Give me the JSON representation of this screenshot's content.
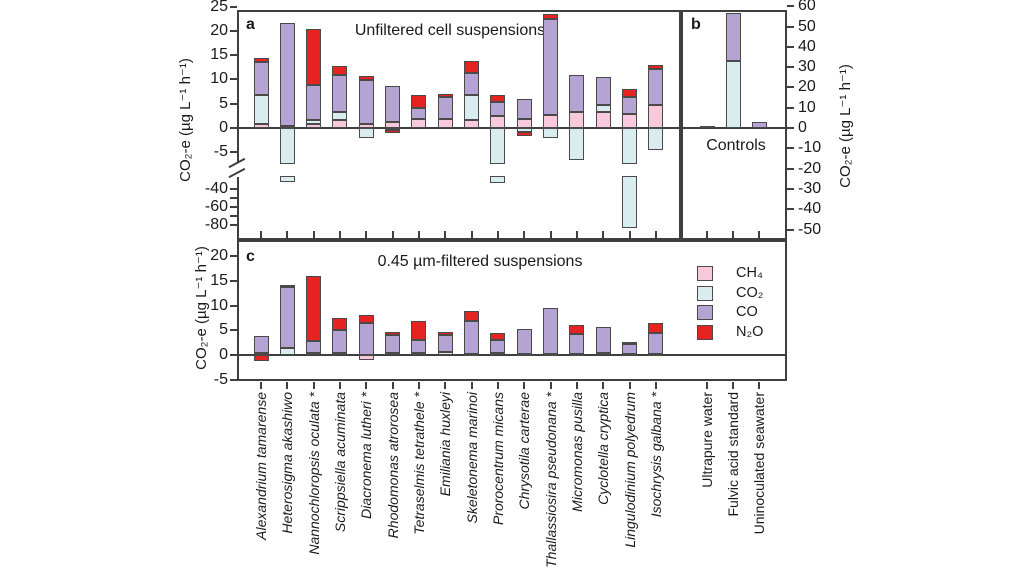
{
  "legend": {
    "items": [
      {
        "key": "ch4",
        "label": "CH₄",
        "color": "#f8c8dc"
      },
      {
        "key": "co2",
        "label": "CO₂",
        "color": "#d9edf1"
      },
      {
        "key": "co",
        "label": "CO",
        "color": "#b4a3d3"
      },
      {
        "key": "n2o",
        "label": "N₂O",
        "color": "#e52421"
      }
    ],
    "position": "right-middle"
  },
  "chart_data": [
    {
      "panel": "a",
      "panel_label": "a",
      "type": "bar",
      "stacked": true,
      "title": "Unfiltered cell suspensions",
      "ylabel": "CO₂-e (µg L⁻¹ h⁻¹)",
      "y_axis": {
        "upper_ticks": [
          25,
          20,
          15,
          10,
          5,
          0,
          -5
        ],
        "lower_ticks": [
          -40,
          -60,
          -80
        ],
        "lower_minor_ticks": [
          -50,
          -70
        ],
        "axis_break": true
      },
      "categories": [
        "Alexandrium tamarense",
        "Heterosigma akashiwo",
        "Nannochloropsis oculata *",
        "Scrippsiella acuminata",
        "Diacronema lutheri *",
        "Rhodomonas atrorosea",
        "Tetraselmis tetrathele *",
        "Emiliania huxleyi",
        "Skeletonema marinoi",
        "Prorocentrum micans",
        "Chrysotila carterae",
        "Thallassiosira pseudonana *",
        "Micromonas pusilla",
        "Cyclotella cryptica",
        "Lingulodinium polyedrum",
        "Isochrysis galbana *"
      ],
      "bars": [
        {
          "pos": {
            "ch4": 0.8,
            "co2": 6.0,
            "co": 6.8,
            "n2o": 0.9
          }
        },
        {
          "pos": {
            "ch4": 0.5,
            "co": 21.2
          },
          "neg": {
            "co2": -32
          }
        },
        {
          "pos": {
            "ch4": 0.8,
            "co2": 0.8,
            "co": 7.3,
            "n2o": 11.4
          }
        },
        {
          "pos": {
            "ch4": 1.6,
            "co2": 1.7,
            "co": 7.7,
            "n2o": 1.7
          }
        },
        {
          "pos": {
            "ch4": 0.8,
            "co": 9.0,
            "n2o": 1.0
          },
          "neg": {
            "co2": -2.1
          }
        },
        {
          "pos": {
            "ch4": 1.2,
            "co": 7.4
          },
          "neg": {
            "ch4": -0.5,
            "n2o": -0.5
          }
        },
        {
          "pos": {
            "ch4": 1.8,
            "co": 2.4,
            "n2o": 2.6
          }
        },
        {
          "pos": {
            "ch4": 1.8,
            "co": 4.6,
            "n2o": 0.6
          }
        },
        {
          "pos": {
            "ch4": 1.7,
            "co2": 5.1,
            "co": 4.5,
            "n2o": 2.4
          }
        },
        {
          "pos": {
            "ch4": 2.4,
            "co": 2.9,
            "n2o": 1.5
          },
          "neg": {
            "co2": -33
          }
        },
        {
          "pos": {
            "ch4": 1.8,
            "co": 4.2
          },
          "neg": {
            "co2": -0.9,
            "n2o": -0.8
          }
        },
        {
          "pos": {
            "ch4": 2.7,
            "co": 19.8,
            "n2o": 0.9
          },
          "neg": {
            "co2": -2.1
          }
        },
        {
          "pos": {
            "ch4": 3.2,
            "co": 7.7
          },
          "neg": {
            "co2": -6.5
          }
        },
        {
          "pos": {
            "ch4": 3.2,
            "co2": 1.5,
            "co": 5.8
          }
        },
        {
          "pos": {
            "ch4": 2.9,
            "co": 3.5,
            "n2o": 1.6
          },
          "neg": {
            "co2": -83
          }
        },
        {
          "pos": {
            "ch4": 4.7,
            "co": 7.5,
            "n2o": 0.7
          },
          "neg": {
            "co2": -4.5
          }
        }
      ]
    },
    {
      "panel": "b",
      "panel_label": "b",
      "type": "bar",
      "stacked": true,
      "annotation": "Controls",
      "ylabel": "CO₂-e (µg L⁻¹ h⁻¹)",
      "y_axis": {
        "ticks": [
          60,
          50,
          40,
          30,
          20,
          10,
          0,
          -10,
          -20,
          -30,
          -40,
          -50
        ],
        "axis_break": false
      },
      "categories": [
        "Ultrapure water",
        "Fulvic acid standard",
        "Uninoculated seawater"
      ],
      "bars": [
        {
          "pos": {
            "co": 1.2
          }
        },
        {
          "pos": {
            "co2": 33,
            "co": 23.5
          }
        },
        {
          "pos": {
            "co": 3.0
          }
        }
      ]
    },
    {
      "panel": "c",
      "panel_label": "c",
      "type": "bar",
      "stacked": true,
      "title": "0.45 µm-filtered suspensions",
      "ylabel": "CO₂-e (µg L⁻¹ h⁻¹)",
      "y_axis": {
        "ticks": [
          20,
          15,
          10,
          5,
          0,
          -5
        ],
        "axis_break": false
      },
      "categories": [
        "Alexandrium tamarense",
        "Heterosigma akashiwo",
        "Nannochloropsis oculata *",
        "Scrippsiella acuminata",
        "Diacronema lutheri *",
        "Rhodomonas atrorosea",
        "Tetraselmis tetrathele *",
        "Emiliania huxleyi",
        "Skeletonema marinoi",
        "Prorocentrum micans",
        "Chrysotila carterae",
        "Thallassiosira pseudonana *",
        "Micromonas pusilla",
        "Cyclotella cryptica",
        "Lingulodinium polyedrum",
        "Isochrysis galbana *"
      ],
      "bars": [
        {
          "pos": {
            "co2": 0.4,
            "co": 3.5
          },
          "neg": {
            "n2o": -1.2
          }
        },
        {
          "pos": {
            "co2": 1.5,
            "co": 12.3,
            "n2o": 0.3
          }
        },
        {
          "pos": {
            "ch4": 0.5,
            "co": 2.4,
            "n2o": 13.0
          }
        },
        {
          "pos": {
            "ch4": 0.5,
            "co": 4.5,
            "n2o": 2.5
          }
        },
        {
          "pos": {
            "co": 6.5,
            "n2o": 1.5
          },
          "neg": {
            "ch4": -1.0
          }
        },
        {
          "pos": {
            "co2": 0.5,
            "co": 3.6,
            "n2o": 0.5
          }
        },
        {
          "pos": {
            "ch4": 0.5,
            "co": 2.5,
            "n2o": 3.8
          }
        },
        {
          "pos": {
            "co2": 0.7,
            "co": 3.3,
            "n2o": 0.7
          }
        },
        {
          "pos": {
            "co2": 0.3,
            "co": 6.5,
            "n2o": 2.1
          }
        },
        {
          "pos": {
            "co2": 0.5,
            "co": 2.5,
            "n2o": 1.4
          }
        },
        {
          "pos": {
            "co2": 0.2,
            "co": 5.1
          }
        },
        {
          "pos": {
            "co2": 0.3,
            "co": 9.2
          }
        },
        {
          "pos": {
            "co2": 0.3,
            "co": 3.9,
            "n2o": 1.8
          }
        },
        {
          "pos": {
            "co2": 0.5,
            "co": 5.2
          }
        },
        {
          "pos": {
            "co2": 0.3,
            "co": 1.9,
            "n2o": 0.4
          }
        },
        {
          "pos": {
            "co2": 0.3,
            "co": 4.1,
            "n2o": 2.0
          }
        }
      ]
    }
  ]
}
